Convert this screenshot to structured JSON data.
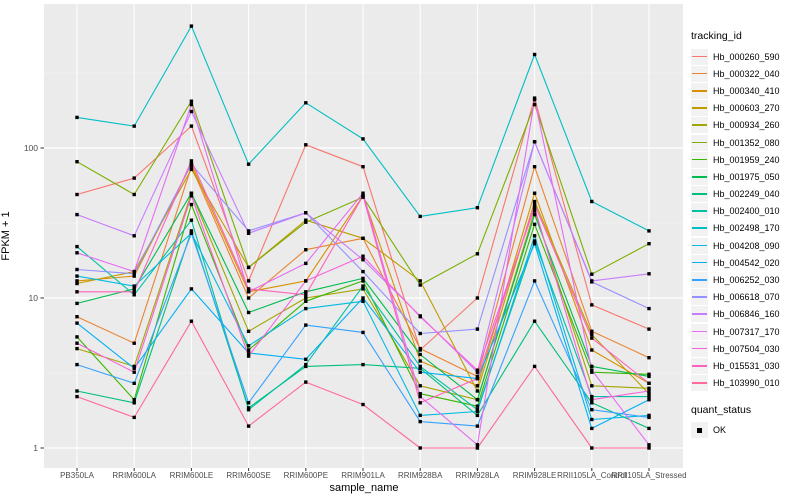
{
  "figure": {
    "y_axis_title": "FPKM + 1",
    "x_axis_title": "sample_name",
    "legend_title": "tracking_id",
    "status_legend_title": "quant_status",
    "status_item_label": "OK"
  },
  "colors": {
    "panel_bg": "#EBEBEB",
    "grid_major": "#FFFFFF",
    "grid_minor": "#F7F7F7",
    "tick_mark": "#333333",
    "tick_label": "#4D4D4D",
    "point": "#000000",
    "legend_key_bg": "#F2F2F2"
  },
  "chart_data": {
    "type": "line",
    "title": "",
    "xlabel": "sample_name",
    "ylabel": "FPKM + 1",
    "y_scale": "log10",
    "y_ticks": [
      1,
      10,
      100
    ],
    "y_minor_ticks": [
      3.162,
      31.62,
      316.2
    ],
    "ylim": [
      0.6,
      900
    ],
    "grid": true,
    "legend_position": "right",
    "legend_title": "tracking_id",
    "point_marker": "black-square",
    "status_legend": {
      "title": "quant_status",
      "items": [
        {
          "label": "OK",
          "marker": "black-square",
          "color": "#000000"
        }
      ]
    },
    "categories": [
      "PB350LA",
      "RRIM600LA",
      "RRIM600LE",
      "RRIM600SE",
      "RRIM600PE",
      "RRIM901LA",
      "RRIM928BA",
      "RRIM928LA",
      "RRIM928LE",
      "RRII105LA_Control",
      "RRII105LA_Stressed"
    ],
    "series": [
      {
        "name": "Hb_000260_590",
        "color": "#F8766D",
        "values": [
          49,
          63,
          140,
          13,
          105,
          75,
          4.5,
          10,
          215,
          9,
          6.2
        ]
      },
      {
        "name": "Hb_000322_040",
        "color": "#EA8331",
        "values": [
          7.5,
          5,
          75,
          10,
          21,
          25,
          4.6,
          3,
          75,
          6,
          4
        ]
      },
      {
        "name": "Hb_000340_410",
        "color": "#D89000",
        "values": [
          13,
          14,
          78,
          11,
          13,
          48,
          3.8,
          2.6,
          50,
          4.5,
          2.7
        ]
      },
      {
        "name": "Hb_000603_270",
        "color": "#C09B00",
        "values": [
          12.5,
          15,
          72,
          16,
          33,
          25,
          13,
          2.4,
          44,
          5.7,
          2.3
        ]
      },
      {
        "name": "Hb_000934_260",
        "color": "#A3A500",
        "values": [
          4.6,
          3.5,
          50,
          6,
          10,
          11.5,
          2.6,
          2.1,
          38,
          2.6,
          2.5
        ]
      },
      {
        "name": "Hb_001352_080",
        "color": "#7CAE00",
        "values": [
          81,
          49,
          205,
          16,
          32,
          47,
          12.2,
          19.7,
          195,
          14.4,
          23
        ]
      },
      {
        "name": "Hb_001959_240",
        "color": "#39B600",
        "values": [
          5.5,
          2.1,
          42,
          4.5,
          9.5,
          13,
          2.3,
          1.9,
          31,
          3.2,
          3.1
        ]
      },
      {
        "name": "Hb_001975_050",
        "color": "#00BB4E",
        "values": [
          9.2,
          11.5,
          50,
          8,
          11,
          13.5,
          4.2,
          2.1,
          36,
          3.5,
          3.0
        ]
      },
      {
        "name": "Hb_002249_040",
        "color": "#00BF7D",
        "values": [
          2.4,
          2.0,
          28,
          1.85,
          3.5,
          3.6,
          3.4,
          1.65,
          7,
          2.0,
          1.35
        ]
      },
      {
        "name": "Hb_002400_010",
        "color": "#00C1A3",
        "values": [
          22,
          10.5,
          33,
          1.8,
          3.6,
          12,
          3.5,
          1.8,
          24,
          2.2,
          2.2
        ]
      },
      {
        "name": "Hb_002498_170",
        "color": "#00BFC4",
        "values": [
          160,
          140,
          650,
          78,
          200,
          115,
          35,
          40,
          420,
          44,
          28
        ]
      },
      {
        "name": "Hb_004208_090",
        "color": "#00BAE0",
        "values": [
          14,
          12,
          27,
          4.8,
          8.5,
          9.5,
          1.65,
          1.75,
          26,
          1.55,
          1.65
        ]
      },
      {
        "name": "Hb_004542_020",
        "color": "#00B0F6",
        "values": [
          6.8,
          3.4,
          11.5,
          4.3,
          3.9,
          10,
          3.2,
          2.9,
          23,
          1.35,
          2.1
        ]
      },
      {
        "name": "Hb_006252_030",
        "color": "#35A2FF",
        "values": [
          3.6,
          2.7,
          27,
          2.0,
          6.6,
          5.9,
          1.5,
          1.4,
          13,
          1.8,
          1.6
        ]
      },
      {
        "name": "Hb_006618_070",
        "color": "#9590FF",
        "values": [
          15.5,
          14.5,
          78,
          28,
          37,
          15,
          5.8,
          6.2,
          110,
          12.8,
          8.5
        ]
      },
      {
        "name": "Hb_006846_160",
        "color": "#C77CFF",
        "values": [
          36,
          26,
          175,
          27,
          37,
          18,
          7.6,
          3.2,
          110,
          13,
          14.5
        ]
      },
      {
        "name": "Hb_007317_170",
        "color": "#E76BF3",
        "values": [
          20,
          15,
          195,
          11,
          17,
          50,
          2.2,
          1.05,
          210,
          3.3,
          1.05
        ]
      },
      {
        "name": "Hb_007504_030",
        "color": "#FA62DB",
        "values": [
          5.0,
          3.2,
          48,
          4.1,
          13,
          19,
          7.5,
          3.3,
          40,
          2.1,
          2.4
        ]
      },
      {
        "name": "Hb_015531_030",
        "color": "#FF62BC",
        "values": [
          11,
          11,
          82,
          11.5,
          10.5,
          48,
          2.0,
          2.9,
          42,
          5.4,
          2.7
        ]
      },
      {
        "name": "Hb_103990_010",
        "color": "#FF6A98",
        "values": [
          2.2,
          1.6,
          7,
          1.4,
          2.75,
          1.95,
          1.0,
          1.0,
          3.5,
          1.0,
          1.0
        ]
      }
    ]
  }
}
